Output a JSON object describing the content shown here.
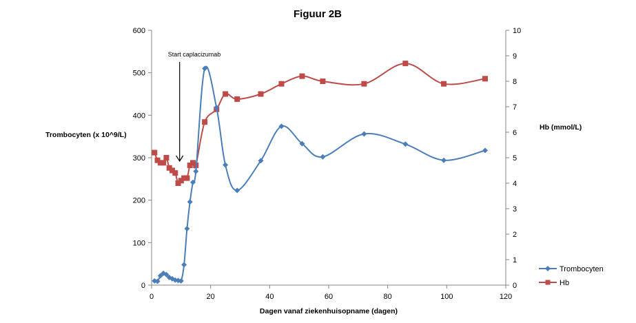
{
  "chart_data": {
    "type": "line",
    "title": "Figuur 2B",
    "xlabel": "Dagen vanaf ziekenhuisopname (dagen)",
    "ylabel_left": "Trombocyten (x 10^9/L)",
    "ylabel_right": "Hb (mmol/L)",
    "xlim": [
      0,
      120
    ],
    "xticks": [
      0,
      20,
      40,
      60,
      80,
      100,
      120
    ],
    "ylim_left": [
      0,
      600
    ],
    "yticks_left": [
      0,
      100,
      200,
      300,
      400,
      500,
      600
    ],
    "ylim_right": [
      0,
      10
    ],
    "yticks_right": [
      0,
      1,
      2,
      3,
      4,
      5,
      6,
      7,
      8,
      9,
      10
    ],
    "grid": false,
    "legend_position": "right",
    "annotation": {
      "text": "Start caplacizumab",
      "x": 9.5
    },
    "series": [
      {
        "name": "Trombocyten",
        "axis": "left",
        "color": "#4a7ebb",
        "marker": "diamond",
        "x": [
          1,
          2,
          3,
          4,
          5,
          6,
          7,
          8,
          9,
          10,
          11,
          12,
          13,
          14,
          15,
          18,
          22,
          25,
          29,
          37,
          44,
          51,
          58,
          72,
          86,
          99,
          113
        ],
        "y": [
          10,
          9,
          22,
          28,
          25,
          18,
          15,
          12,
          11,
          10,
          48,
          133,
          196,
          242,
          268,
          510,
          418,
          283,
          223,
          293,
          374,
          333,
          302,
          356,
          332,
          294,
          317
        ]
      },
      {
        "name": "Hb",
        "axis": "right",
        "color": "#be4b48",
        "marker": "square",
        "x": [
          1,
          2,
          3,
          4,
          5,
          6,
          7,
          8,
          9,
          10,
          11,
          12,
          13,
          14,
          15,
          18,
          22,
          25,
          29,
          37,
          44,
          51,
          58,
          72,
          86,
          99,
          113
        ],
        "y": [
          5.2,
          4.9,
          4.8,
          4.8,
          5.0,
          4.6,
          4.5,
          4.4,
          4.0,
          4.1,
          4.2,
          4.2,
          4.7,
          4.8,
          4.7,
          6.4,
          6.9,
          7.5,
          7.3,
          7.5,
          7.9,
          8.2,
          8.0,
          7.9,
          8.7,
          7.9,
          8.1
        ]
      }
    ]
  }
}
